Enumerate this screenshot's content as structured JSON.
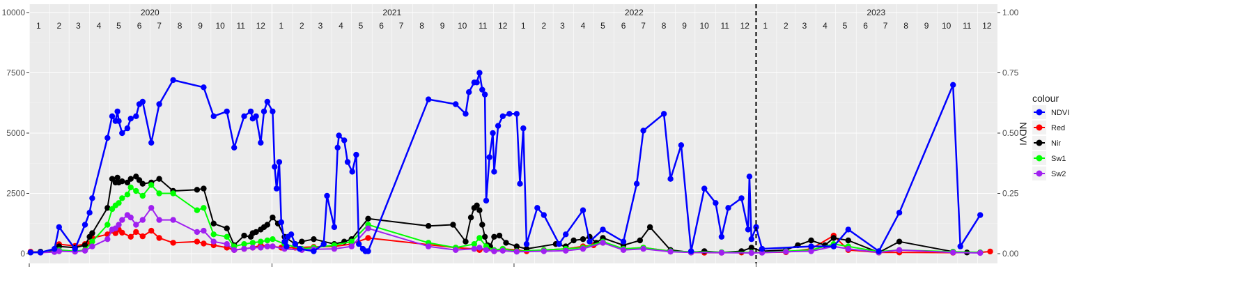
{
  "chart_data": {
    "type": "line",
    "xlabel": "",
    "ylabel_left": "",
    "ylabel_right": "NDVI",
    "ylim_left": [
      0,
      10000
    ],
    "ylim_right": [
      0,
      1
    ],
    "yticks_left": [
      "0",
      "2500",
      "5000",
      "7500",
      "10000"
    ],
    "yticks_right": [
      "0.00",
      "0.25",
      "0.50",
      "0.75",
      "1.00"
    ],
    "years": [
      "2020",
      "2021",
      "2022",
      "2023"
    ],
    "months": [
      "1",
      "2",
      "3",
      "4",
      "5",
      "6",
      "7",
      "8",
      "9",
      "10",
      "11",
      "12"
    ],
    "x_start": "2020-01-01",
    "x_end": "2023-12-31",
    "vline_date": "2023-01-01",
    "grid": true,
    "legend": {
      "title": "colour",
      "position": "right"
    },
    "series": [
      {
        "name": "NDVI",
        "color": "#0000ff",
        "axis": "right",
        "x": [
          "2020-01-03",
          "2020-01-18",
          "2020-02-08",
          "2020-02-15",
          "2020-03-10",
          "2020-03-25",
          "2020-04-01",
          "2020-04-05",
          "2020-04-28",
          "2020-05-05",
          "2020-05-10",
          "2020-05-13",
          "2020-05-15",
          "2020-05-20",
          "2020-05-28",
          "2020-06-02",
          "2020-06-10",
          "2020-06-15",
          "2020-06-20",
          "2020-07-03",
          "2020-07-15",
          "2020-08-05",
          "2020-09-20",
          "2020-10-05",
          "2020-10-25",
          "2020-11-05",
          "2020-11-20",
          "2020-11-30",
          "2020-12-03",
          "2020-12-08",
          "2020-12-15",
          "2020-12-20",
          "2020-12-25",
          "2021-01-02",
          "2021-01-05",
          "2021-01-08",
          "2021-01-12",
          "2021-01-15",
          "2021-01-20",
          "2021-01-23",
          "2021-01-25",
          "2021-01-30",
          "2021-02-05",
          "2021-02-12",
          "2021-03-05",
          "2021-03-20",
          "2021-03-25",
          "2021-04-05",
          "2021-04-10",
          "2021-04-12",
          "2021-04-20",
          "2021-04-25",
          "2021-05-02",
          "2021-05-08",
          "2021-05-12",
          "2021-05-18",
          "2021-05-22",
          "2021-05-26",
          "2021-08-25",
          "2021-10-05",
          "2021-10-20",
          "2021-10-25",
          "2021-11-02",
          "2021-11-06",
          "2021-11-10",
          "2021-11-14",
          "2021-11-18",
          "2021-11-20",
          "2021-11-25",
          "2021-11-30",
          "2021-12-02",
          "2021-12-08",
          "2021-12-15",
          "2021-12-25",
          "2022-01-05",
          "2022-01-10",
          "2022-01-15",
          "2022-01-20",
          "2022-02-05",
          "2022-02-15",
          "2022-03-10",
          "2022-03-20",
          "2022-04-15",
          "2022-04-25",
          "2022-05-15",
          "2022-06-15",
          "2022-07-05",
          "2022-07-15",
          "2022-08-15",
          "2022-08-25",
          "2022-09-10",
          "2022-09-25",
          "2022-10-15",
          "2022-11-01",
          "2022-11-10",
          "2022-11-20",
          "2022-12-10",
          "2022-12-20",
          "2022-12-22",
          "2022-12-25",
          "2023-01-01",
          "2023-01-10",
          "2023-03-25",
          "2023-04-28",
          "2023-05-20",
          "2023-07-05",
          "2023-08-05",
          "2023-10-25",
          "2023-11-05",
          "2023-12-05"
        ],
        "values": [
          0.005,
          0.005,
          0.02,
          0.11,
          0.02,
          0.12,
          0.17,
          0.23,
          0.48,
          0.57,
          0.55,
          0.59,
          0.55,
          0.5,
          0.52,
          0.56,
          0.57,
          0.62,
          0.63,
          0.46,
          0.62,
          0.72,
          0.69,
          0.57,
          0.59,
          0.44,
          0.57,
          0.59,
          0.56,
          0.57,
          0.46,
          0.59,
          0.63,
          0.59,
          0.36,
          0.27,
          0.38,
          0.13,
          0.05,
          0.03,
          0.07,
          0.08,
          0.04,
          0.02,
          0.01,
          0.04,
          0.24,
          0.11,
          0.44,
          0.49,
          0.47,
          0.38,
          0.34,
          0.41,
          0.04,
          0.02,
          0.01,
          0.01,
          0.64,
          0.62,
          0.58,
          0.67,
          0.71,
          0.71,
          0.75,
          0.68,
          0.66,
          0.22,
          0.4,
          0.5,
          0.34,
          0.53,
          0.57,
          0.58,
          0.58,
          0.29,
          0.52,
          0.04,
          0.19,
          0.16,
          0.04,
          0.08,
          0.18,
          0.05,
          0.1,
          0.05,
          0.29,
          0.51,
          0.58,
          0.31,
          0.45,
          0.01,
          0.27,
          0.21,
          0.07,
          0.19,
          0.23,
          0.1,
          0.32,
          0.06,
          0.11,
          0.02,
          0.03,
          0.03,
          0.1,
          0.01,
          0.17,
          0.7,
          0.03,
          0.16
        ]
      },
      {
        "name": "Red",
        "color": "#ff0000",
        "axis": "left",
        "x": [
          "2020-01-03",
          "2020-01-18",
          "2020-02-08",
          "2020-02-15",
          "2020-03-10",
          "2020-03-25",
          "2020-04-01",
          "2020-04-05",
          "2020-04-28",
          "2020-05-05",
          "2020-05-10",
          "2020-05-15",
          "2020-05-20",
          "2020-06-02",
          "2020-06-10",
          "2020-06-20",
          "2020-07-03",
          "2020-07-15",
          "2020-08-05",
          "2020-09-10",
          "2020-09-20",
          "2020-10-05",
          "2020-10-25",
          "2020-11-05",
          "2020-11-20",
          "2020-12-03",
          "2020-12-15",
          "2020-12-25",
          "2021-01-02",
          "2021-01-15",
          "2021-02-05",
          "2021-03-05",
          "2021-04-05",
          "2021-05-01",
          "2021-05-26",
          "2021-10-05",
          "2021-11-02",
          "2021-11-10",
          "2021-11-20",
          "2021-12-02",
          "2021-12-15",
          "2022-01-05",
          "2022-01-20",
          "2022-02-15",
          "2022-03-20",
          "2022-04-15",
          "2022-05-01",
          "2022-05-15",
          "2022-06-15",
          "2022-07-15",
          "2022-08-25",
          "2022-09-25",
          "2022-10-15",
          "2022-11-10",
          "2022-12-10",
          "2022-12-25",
          "2023-01-10",
          "2023-02-15",
          "2023-03-25",
          "2023-04-28",
          "2023-05-20",
          "2023-07-05",
          "2023-08-05",
          "2023-10-25",
          "2023-12-05",
          "2023-12-20"
        ],
        "values": [
          80,
          50,
          180,
          390,
          320,
          400,
          430,
          650,
          800,
          950,
          850,
          1000,
          870,
          700,
          900,
          720,
          950,
          650,
          450,
          500,
          420,
          350,
          250,
          150,
          200,
          250,
          350,
          300,
          300,
          250,
          250,
          280,
          300,
          400,
          650,
          250,
          200,
          150,
          180,
          100,
          200,
          150,
          100,
          150,
          200,
          300,
          350,
          450,
          200,
          250,
          100,
          50,
          40,
          40,
          50,
          40,
          50,
          60,
          200,
          750,
          150,
          50,
          50,
          40,
          50,
          90
        ]
      },
      {
        "name": "Nir",
        "color": "#000000",
        "axis": "left",
        "x": [
          "2020-01-03",
          "2020-01-18",
          "2020-02-08",
          "2020-02-15",
          "2020-03-10",
          "2020-03-25",
          "2020-04-01",
          "2020-04-05",
          "2020-04-28",
          "2020-05-05",
          "2020-05-10",
          "2020-05-13",
          "2020-05-15",
          "2020-05-20",
          "2020-05-28",
          "2020-06-02",
          "2020-06-10",
          "2020-06-15",
          "2020-06-20",
          "2020-07-03",
          "2020-07-15",
          "2020-08-05",
          "2020-09-10",
          "2020-09-20",
          "2020-10-05",
          "2020-10-25",
          "2020-11-05",
          "2020-11-20",
          "2020-11-30",
          "2020-12-03",
          "2020-12-08",
          "2020-12-15",
          "2020-12-20",
          "2020-12-25",
          "2021-01-02",
          "2021-01-10",
          "2021-01-20",
          "2021-02-05",
          "2021-02-15",
          "2021-03-05",
          "2021-04-05",
          "2021-04-20",
          "2021-05-01",
          "2021-05-26",
          "2021-08-25",
          "2021-10-01",
          "2021-10-20",
          "2021-10-28",
          "2021-11-02",
          "2021-11-06",
          "2021-11-10",
          "2021-11-14",
          "2021-11-18",
          "2021-11-22",
          "2021-11-26",
          "2021-12-02",
          "2021-12-10",
          "2021-12-20",
          "2022-01-05",
          "2022-01-20",
          "2022-03-05",
          "2022-03-20",
          "2022-04-01",
          "2022-04-15",
          "2022-04-25",
          "2022-05-05",
          "2022-05-15",
          "2022-06-15",
          "2022-07-10",
          "2022-07-25",
          "2022-08-25",
          "2022-09-25",
          "2022-10-15",
          "2022-11-10",
          "2022-12-10",
          "2022-12-25",
          "2023-01-10",
          "2023-02-15",
          "2023-03-05",
          "2023-03-25",
          "2023-04-15",
          "2023-04-28",
          "2023-05-20",
          "2023-07-05",
          "2023-08-05",
          "2023-10-25",
          "2023-11-15",
          "2023-12-05"
        ],
        "values": [
          50,
          80,
          100,
          300,
          250,
          350,
          700,
          850,
          1900,
          3100,
          2950,
          3150,
          2950,
          3000,
          2950,
          3100,
          3200,
          3050,
          2900,
          2950,
          3100,
          2600,
          2650,
          2700,
          1250,
          1050,
          350,
          750,
          700,
          850,
          900,
          1000,
          1100,
          1200,
          1500,
          1250,
          700,
          400,
          500,
          600,
          400,
          500,
          600,
          1450,
          1150,
          1200,
          500,
          1500,
          1900,
          2000,
          1800,
          1200,
          700,
          350,
          300,
          700,
          750,
          450,
          300,
          200,
          400,
          300,
          550,
          600,
          700,
          450,
          650,
          350,
          550,
          1100,
          150,
          50,
          100,
          50,
          100,
          250,
          100,
          150,
          350,
          550,
          350,
          650,
          550,
          50,
          500,
          80,
          50,
          50
        ]
      },
      {
        "name": "Sw1",
        "color": "#00ff00",
        "axis": "left",
        "x": [
          "2020-01-03",
          "2020-01-18",
          "2020-02-08",
          "2020-02-15",
          "2020-03-10",
          "2020-03-25",
          "2020-04-05",
          "2020-04-28",
          "2020-05-05",
          "2020-05-10",
          "2020-05-15",
          "2020-05-20",
          "2020-05-28",
          "2020-06-02",
          "2020-06-10",
          "2020-06-20",
          "2020-07-03",
          "2020-07-15",
          "2020-08-05",
          "2020-09-10",
          "2020-09-20",
          "2020-10-05",
          "2020-10-25",
          "2020-11-05",
          "2020-11-20",
          "2020-12-03",
          "2020-12-15",
          "2020-12-25",
          "2021-01-02",
          "2021-01-20",
          "2021-02-15",
          "2021-03-05",
          "2021-04-05",
          "2021-05-01",
          "2021-05-26",
          "2021-08-25",
          "2021-10-05",
          "2021-11-02",
          "2021-11-10",
          "2021-11-20",
          "2021-12-02",
          "2021-12-15",
          "2022-01-05",
          "2022-02-15",
          "2022-03-20",
          "2022-04-15",
          "2022-05-15",
          "2022-06-15",
          "2022-07-15",
          "2022-08-25",
          "2022-09-25",
          "2022-11-10",
          "2022-12-25",
          "2023-01-10",
          "2023-02-15",
          "2023-03-25",
          "2023-04-28",
          "2023-05-20",
          "2023-07-05",
          "2023-08-05",
          "2023-10-25",
          "2023-12-05"
        ],
        "values": [
          50,
          50,
          80,
          150,
          100,
          150,
          500,
          1200,
          1850,
          2000,
          2100,
          2300,
          2450,
          2750,
          2600,
          2400,
          2850,
          2500,
          2500,
          1800,
          1900,
          800,
          700,
          300,
          400,
          450,
          500,
          550,
          600,
          400,
          200,
          250,
          350,
          500,
          1200,
          450,
          250,
          400,
          650,
          300,
          150,
          200,
          100,
          150,
          200,
          250,
          500,
          200,
          250,
          100,
          80,
          60,
          50,
          50,
          100,
          150,
          400,
          300,
          80,
          150,
          80,
          50
        ]
      },
      {
        "name": "Sw2",
        "color": "#a020f0",
        "axis": "left",
        "x": [
          "2020-01-03",
          "2020-01-18",
          "2020-02-08",
          "2020-02-15",
          "2020-03-10",
          "2020-03-25",
          "2020-04-05",
          "2020-04-28",
          "2020-05-05",
          "2020-05-10",
          "2020-05-15",
          "2020-05-20",
          "2020-05-28",
          "2020-06-02",
          "2020-06-10",
          "2020-06-20",
          "2020-07-03",
          "2020-07-15",
          "2020-08-05",
          "2020-09-10",
          "2020-09-20",
          "2020-10-05",
          "2020-10-25",
          "2020-11-05",
          "2020-11-20",
          "2020-12-03",
          "2020-12-15",
          "2020-12-25",
          "2021-01-02",
          "2021-01-20",
          "2021-02-15",
          "2021-03-05",
          "2021-04-05",
          "2021-05-01",
          "2021-05-26",
          "2021-08-25",
          "2021-10-05",
          "2021-11-02",
          "2021-11-10",
          "2021-11-20",
          "2021-12-02",
          "2021-12-15",
          "2022-01-05",
          "2022-02-15",
          "2022-03-20",
          "2022-04-15",
          "2022-05-15",
          "2022-06-15",
          "2022-07-15",
          "2022-08-25",
          "2022-09-25",
          "2022-11-10",
          "2022-12-25",
          "2023-01-10",
          "2023-02-15",
          "2023-03-25",
          "2023-04-28",
          "2023-05-20",
          "2023-07-05",
          "2023-08-05",
          "2023-10-25",
          "2023-12-05"
        ],
        "values": [
          50,
          40,
          70,
          100,
          80,
          120,
          300,
          600,
          1000,
          1050,
          1200,
          1400,
          1600,
          1500,
          1200,
          1400,
          1900,
          1400,
          1400,
          900,
          950,
          500,
          400,
          150,
          200,
          250,
          250,
          300,
          300,
          200,
          150,
          180,
          200,
          300,
          1050,
          300,
          150,
          200,
          250,
          150,
          100,
          120,
          80,
          100,
          120,
          200,
          450,
          150,
          200,
          80,
          50,
          40,
          30,
          40,
          80,
          100,
          300,
          200,
          50,
          150,
          50,
          30
        ]
      }
    ]
  }
}
